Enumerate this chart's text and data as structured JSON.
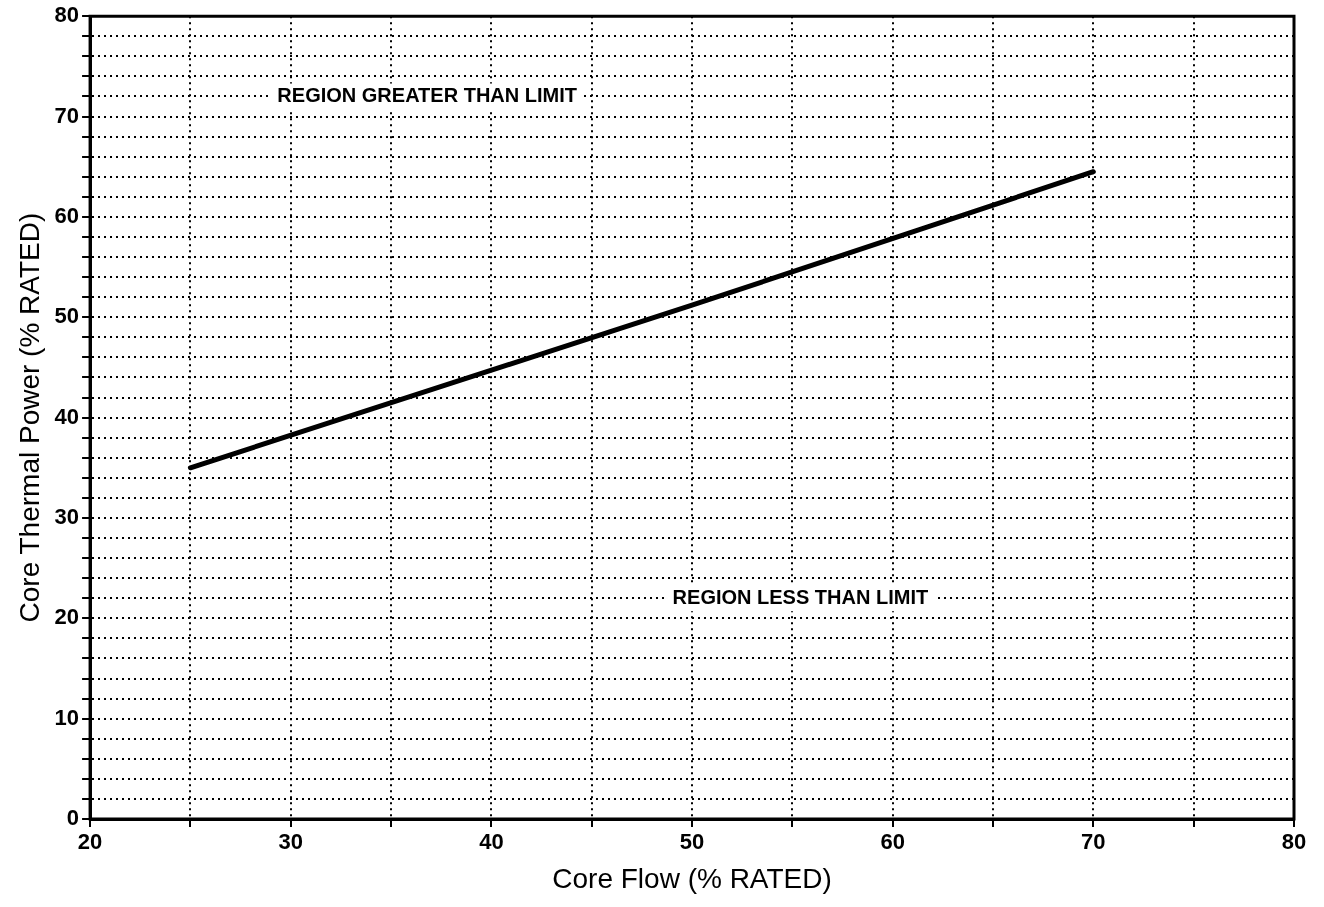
{
  "chart_data": {
    "type": "line",
    "xlabel": "Core Flow (% RATED)",
    "ylabel": "Core Thermal Power (% RATED)",
    "x": [
      25,
      50,
      70
    ],
    "series": [
      {
        "color": "#000000",
        "values": [
          35,
          51.2,
          64.5
        ]
      }
    ],
    "xlim": [
      20,
      80
    ],
    "ylim": [
      0,
      80
    ],
    "xticks": [
      20,
      {
        "value": 25,
        "label": null
      },
      30,
      {
        "value": 35,
        "label": null
      },
      40,
      {
        "value": 45,
        "label": null
      },
      50,
      {
        "value": 55,
        "label": null
      },
      60,
      {
        "value": 65,
        "label": null
      },
      70,
      {
        "value": 75,
        "label": null
      },
      80
    ],
    "yticks": [
      0,
      {
        "value": 2,
        "label": null
      },
      {
        "value": 4,
        "label": null
      },
      {
        "value": 6,
        "label": null
      },
      {
        "value": 8,
        "label": null
      },
      10,
      {
        "value": 12,
        "label": null
      },
      {
        "value": 14,
        "label": null
      },
      {
        "value": 16,
        "label": null
      },
      {
        "value": 18,
        "label": null
      },
      20,
      {
        "value": 22,
        "label": null
      },
      {
        "value": 24,
        "label": null
      },
      {
        "value": 26,
        "label": null
      },
      {
        "value": 28,
        "label": null
      },
      30,
      {
        "value": 32,
        "label": null
      },
      {
        "value": 34,
        "label": null
      },
      {
        "value": 36,
        "label": null
      },
      {
        "value": 38,
        "label": null
      },
      40,
      {
        "value": 42,
        "label": null
      },
      {
        "value": 44,
        "label": null
      },
      {
        "value": 46,
        "label": null
      },
      {
        "value": 48,
        "label": null
      },
      50,
      {
        "value": 52,
        "label": null
      },
      {
        "value": 54,
        "label": null
      },
      {
        "value": 56,
        "label": null
      },
      {
        "value": 58,
        "label": null
      },
      60,
      {
        "value": 62,
        "label": null
      },
      {
        "value": 64,
        "label": null
      },
      {
        "value": 66,
        "label": null
      },
      {
        "value": 68,
        "label": null
      },
      70,
      {
        "value": 72,
        "label": null
      },
      {
        "value": 74,
        "label": null
      },
      {
        "value": 76,
        "label": null
      },
      {
        "value": 78,
        "label": null
      },
      80
    ],
    "grid": true,
    "legend": false,
    "marker": "none",
    "line_style": "solid",
    "annotations": [
      "REGION GREATER THAN LIMIT",
      "REGION LESS THAN LIMIT"
    ]
  }
}
